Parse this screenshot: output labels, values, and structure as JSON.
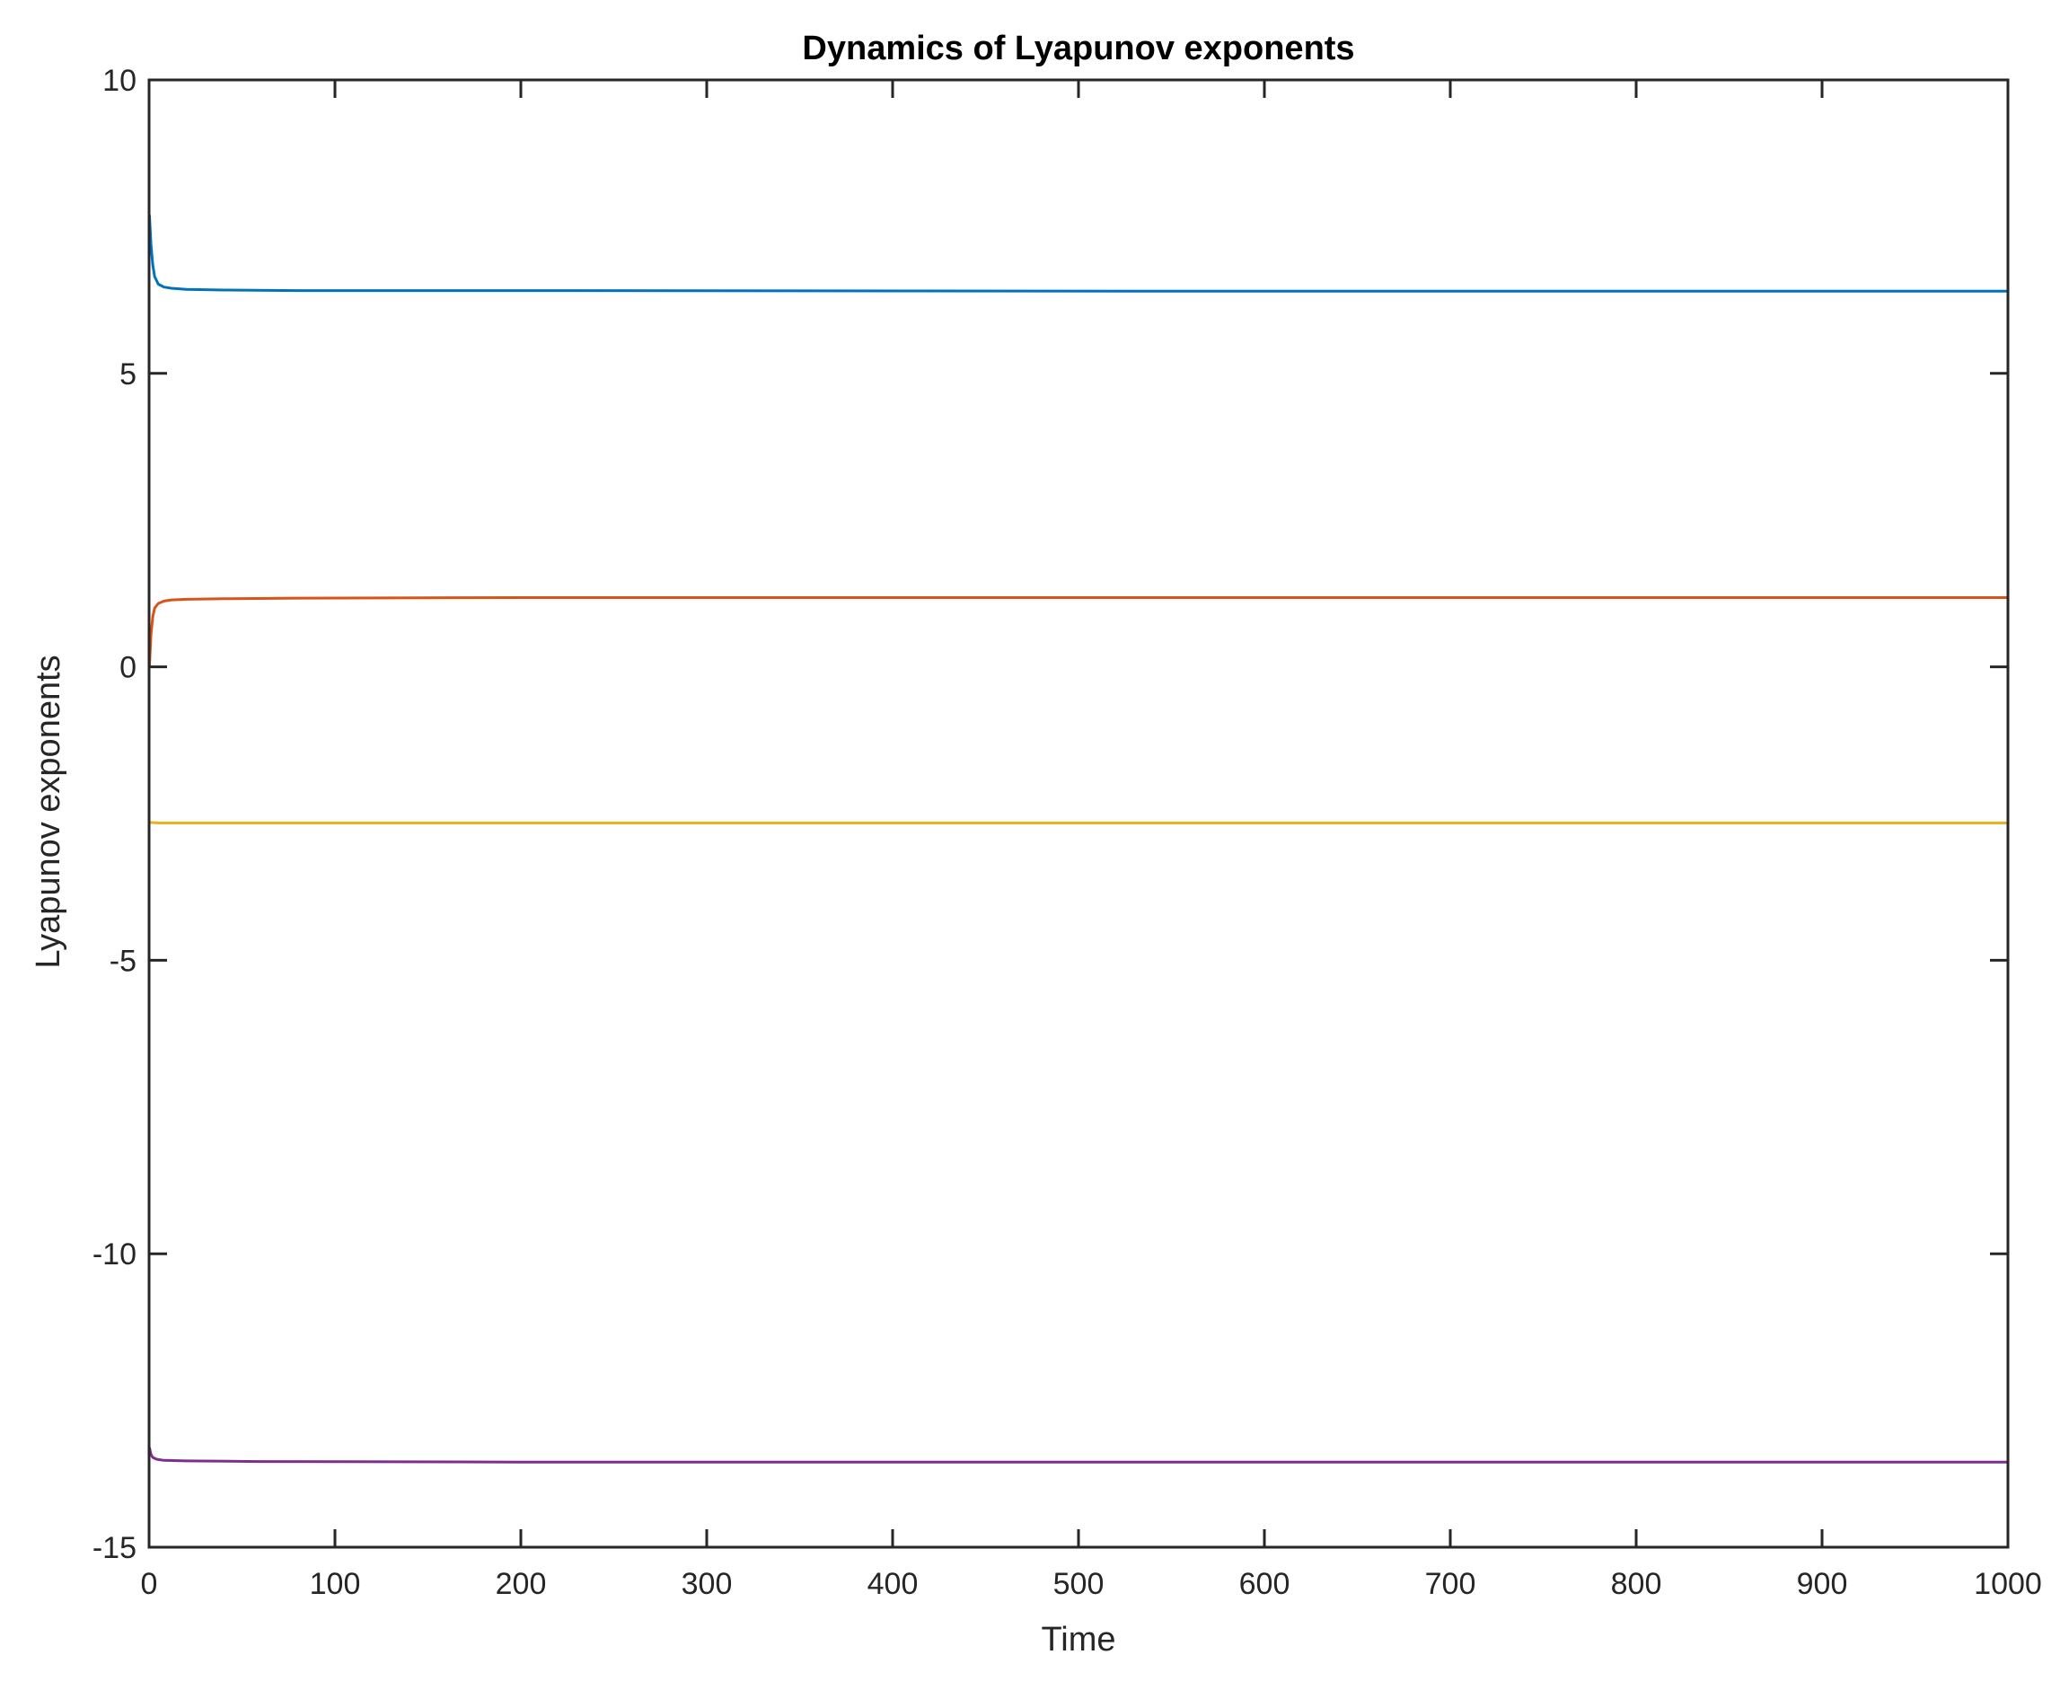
{
  "chart_data": {
    "type": "line",
    "title": "Dynamics of Lyapunov exponents",
    "xlabel": "Time",
    "ylabel": "Lyapunov exponents",
    "xlim": [
      0,
      1000
    ],
    "ylim": [
      -15,
      10
    ],
    "xticks": [
      0,
      100,
      200,
      300,
      400,
      500,
      600,
      700,
      800,
      900,
      1000
    ],
    "yticks": [
      -15,
      -10,
      -5,
      0,
      5,
      10
    ],
    "xtick_labels": [
      "0",
      "100",
      "200",
      "300",
      "400",
      "500",
      "600",
      "700",
      "800",
      "900",
      "1000"
    ],
    "ytick_labels": [
      "-15",
      "-10",
      "-5",
      "0",
      "5",
      "10"
    ],
    "grid": false,
    "legend": "none",
    "colors": {
      "axes": "#262626",
      "series1": "#0072BD",
      "series2": "#D95319",
      "series3": "#EDB120",
      "series4": "#7E2F8E"
    },
    "series": [
      {
        "color": "#0072BD",
        "x": [
          0.2,
          1,
          2,
          3,
          5,
          8,
          12,
          20,
          40,
          80,
          200,
          550,
          1000
        ],
        "y": [
          7.7,
          7.2,
          6.85,
          6.65,
          6.52,
          6.47,
          6.45,
          6.43,
          6.42,
          6.41,
          6.41,
          6.4,
          6.4
        ]
      },
      {
        "color": "#D95319",
        "x": [
          0.2,
          1,
          2,
          3,
          5,
          8,
          12,
          20,
          40,
          80,
          200,
          500,
          1000
        ],
        "y": [
          0.0,
          0.55,
          0.85,
          1.0,
          1.08,
          1.12,
          1.14,
          1.15,
          1.16,
          1.17,
          1.18,
          1.18,
          1.18
        ],
        "_note": ""
      },
      {
        "color": "#EDB120",
        "x": [
          0,
          5,
          100,
          500,
          1000
        ],
        "y": [
          -2.65,
          -2.66,
          -2.66,
          -2.66,
          -2.66
        ]
      },
      {
        "color": "#7E2F8E",
        "x": [
          0.2,
          1,
          2,
          4,
          8,
          20,
          60,
          200,
          1000
        ],
        "y": [
          -13.3,
          -13.42,
          -13.47,
          -13.5,
          -13.52,
          -13.53,
          -13.54,
          -13.55,
          -13.55
        ]
      }
    ]
  }
}
